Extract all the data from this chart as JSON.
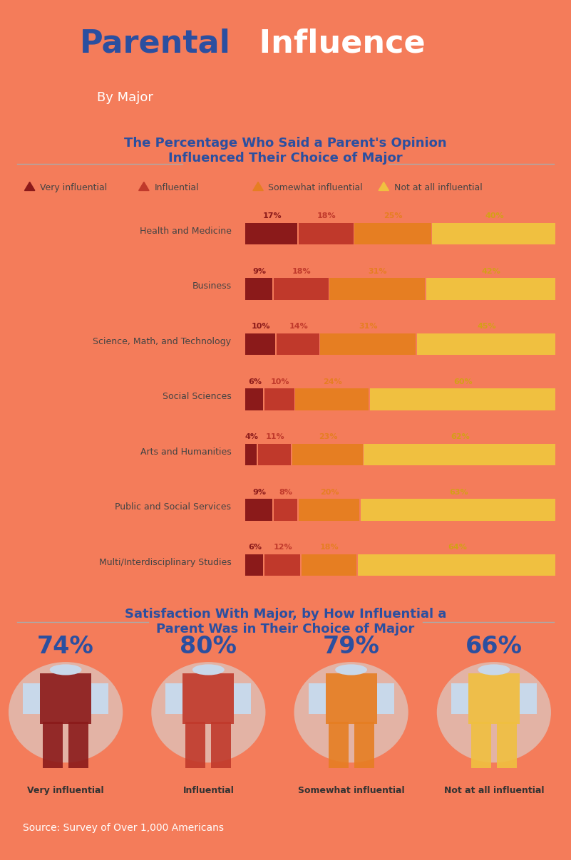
{
  "title_parental": "Parental",
  "title_influence": " Influence",
  "subtitle": "By Major",
  "header_bg_color": "#F47C5A",
  "body_bg_color": "#EAEAEA",
  "footer_bg_color": "#3B5998",
  "section1_title": "The Percentage Who Said a Parent's Opinion\nInfluenced Their Choice of Major",
  "section2_title": "Satisfaction With Major, by How Influential a\nParent Was in Their Choice of Major",
  "legend_labels": [
    "Very influential",
    "Influential",
    "Somewhat influential",
    "Not at all influential"
  ],
  "bar_colors": [
    "#8B1A1A",
    "#C0392B",
    "#E67E22",
    "#F0C040"
  ],
  "categories": [
    "Health and Medicine",
    "Business",
    "Science, Math, and Technology",
    "Social Sciences",
    "Arts and Humanities",
    "Public and Social Services",
    "Multi/Interdisciplinary Studies"
  ],
  "data": [
    [
      17,
      18,
      25,
      40
    ],
    [
      9,
      18,
      31,
      42
    ],
    [
      10,
      14,
      31,
      45
    ],
    [
      6,
      10,
      24,
      60
    ],
    [
      4,
      11,
      23,
      62
    ],
    [
      9,
      8,
      20,
      63
    ],
    [
      6,
      12,
      18,
      64
    ]
  ],
  "satisfaction_labels": [
    "Very influential",
    "Influential",
    "Somewhat influential",
    "Not at all influential"
  ],
  "satisfaction_values": [
    "74%",
    "80%",
    "79%",
    "66%"
  ],
  "satisfaction_colors": [
    "#8B1A1A",
    "#C0392B",
    "#E67E22",
    "#F0C040"
  ],
  "source_text": "Source: Survey of Over 1,000 Americans",
  "title_color_parental": "#2B4FA0",
  "title_color_influence": "#FFFFFF",
  "section_title_color": "#2B4FA0",
  "pct_colors": [
    "#8B1A1A",
    "#C0392B",
    "#E67E22",
    "#D4A017"
  ]
}
